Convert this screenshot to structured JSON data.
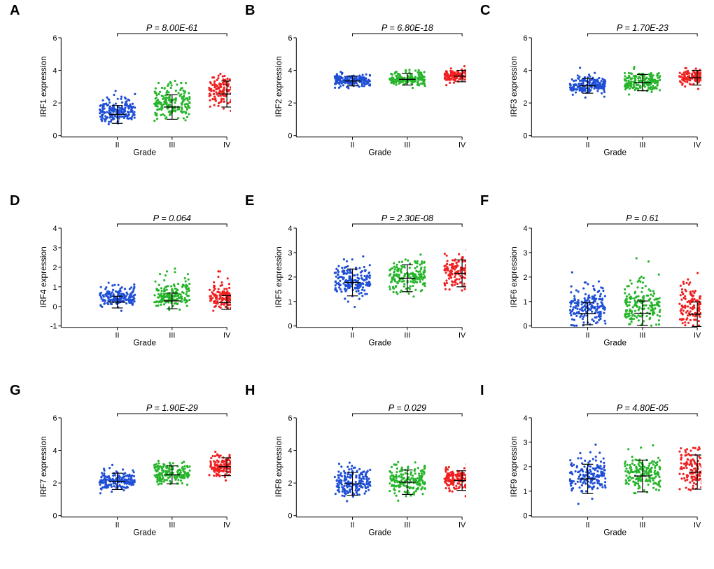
{
  "colors": {
    "bg": "#ffffff",
    "axis": "#000000",
    "groups": {
      "II": "#1f4fd6",
      "III": "#27b52b",
      "IV": "#f02020"
    },
    "meanbar": "#000000"
  },
  "layout": {
    "cols": 3,
    "rows": 3,
    "dot_radius": 1.6,
    "points_per_group": 180,
    "jitter_width": 0.65,
    "group_positions": [
      1,
      2,
      3
    ],
    "axis_stroke_width": 1,
    "pval_fontsize": 13,
    "tick_fontsize": 11,
    "axis_title_fontsize": 12,
    "panel_letter_fontsize": 20
  },
  "xaxis": {
    "title": "Grade",
    "categories": [
      "II",
      "III",
      "IV"
    ]
  },
  "panels": [
    {
      "letter": "A",
      "y_label": "IRF1 expression",
      "p_text": "P = 8.00E-61",
      "ylim": [
        0,
        6
      ],
      "yticks": [
        0,
        2,
        4,
        6
      ],
      "groups": [
        {
          "grade": "II",
          "mean": 1.3,
          "sd": 0.55,
          "skew": 1.2
        },
        {
          "grade": "III",
          "mean": 1.75,
          "sd": 0.75,
          "skew": 1.1
        },
        {
          "grade": "IV",
          "mean": 2.55,
          "sd": 0.8,
          "skew": 0.7
        }
      ]
    },
    {
      "letter": "B",
      "y_label": "IRF2 expression",
      "p_text": "P = 6.80E-18",
      "ylim": [
        0,
        6
      ],
      "yticks": [
        0,
        2,
        4,
        6
      ],
      "groups": [
        {
          "grade": "II",
          "mean": 3.35,
          "sd": 0.3,
          "skew": 0.2
        },
        {
          "grade": "III",
          "mean": 3.45,
          "sd": 0.35,
          "skew": 0.2
        },
        {
          "grade": "IV",
          "mean": 3.65,
          "sd": 0.35,
          "skew": 0.2
        }
      ]
    },
    {
      "letter": "C",
      "y_label": "IRF3 expression",
      "p_text": "P = 1.70E-23",
      "ylim": [
        0,
        6
      ],
      "yticks": [
        0,
        2,
        4,
        6
      ],
      "groups": [
        {
          "grade": "II",
          "mean": 3.05,
          "sd": 0.45,
          "skew": 0.3
        },
        {
          "grade": "III",
          "mean": 3.25,
          "sd": 0.5,
          "skew": 0.3
        },
        {
          "grade": "IV",
          "mean": 3.55,
          "sd": 0.45,
          "skew": 0.3
        }
      ]
    },
    {
      "letter": "D",
      "y_label": "IRF4 expression",
      "p_text": "P = 0.064",
      "ylim": [
        -1,
        4
      ],
      "yticks": [
        -1,
        0,
        1,
        2,
        3,
        4
      ],
      "groups": [
        {
          "grade": "II",
          "mean": 0.22,
          "sd": 0.3,
          "skew": 2.5
        },
        {
          "grade": "III",
          "mean": 0.28,
          "sd": 0.4,
          "skew": 2.5
        },
        {
          "grade": "IV",
          "mean": 0.2,
          "sd": 0.35,
          "skew": 2.5
        }
      ]
    },
    {
      "letter": "E",
      "y_label": "IRF5 expression",
      "p_text": "P = 2.30E-08",
      "ylim": [
        0,
        4
      ],
      "yticks": [
        0,
        1,
        2,
        3,
        4
      ],
      "groups": [
        {
          "grade": "II",
          "mean": 1.78,
          "sd": 0.55,
          "skew": 0.4
        },
        {
          "grade": "III",
          "mean": 1.95,
          "sd": 0.55,
          "skew": 0.4
        },
        {
          "grade": "IV",
          "mean": 2.15,
          "sd": 0.55,
          "skew": 0.4
        }
      ]
    },
    {
      "letter": "F",
      "y_label": "IRF6 expression",
      "p_text": "P = 0.61",
      "ylim": [
        0,
        4
      ],
      "yticks": [
        0,
        1,
        2,
        3,
        4
      ],
      "groups": [
        {
          "grade": "II",
          "mean": 0.5,
          "sd": 0.45,
          "skew": 2.0
        },
        {
          "grade": "III",
          "mean": 0.52,
          "sd": 0.5,
          "skew": 2.0
        },
        {
          "grade": "IV",
          "mean": 0.48,
          "sd": 0.5,
          "skew": 2.0
        }
      ]
    },
    {
      "letter": "G",
      "y_label": "IRF7 expression",
      "p_text": "P = 1.90E-29",
      "ylim": [
        0,
        6
      ],
      "yticks": [
        0,
        2,
        4,
        6
      ],
      "groups": [
        {
          "grade": "II",
          "mean": 2.1,
          "sd": 0.5,
          "skew": 0.4
        },
        {
          "grade": "III",
          "mean": 2.5,
          "sd": 0.55,
          "skew": 0.4
        },
        {
          "grade": "IV",
          "mean": 3.0,
          "sd": 0.55,
          "skew": 0.3
        }
      ]
    },
    {
      "letter": "H",
      "y_label": "IRF8 expression",
      "p_text": "P = 0.029",
      "ylim": [
        0,
        6
      ],
      "yticks": [
        0,
        2,
        4,
        6
      ],
      "groups": [
        {
          "grade": "II",
          "mean": 1.95,
          "sd": 0.7,
          "skew": 0.5
        },
        {
          "grade": "III",
          "mean": 2.05,
          "sd": 0.75,
          "skew": 0.5
        },
        {
          "grade": "IV",
          "mean": 2.15,
          "sd": 0.6,
          "skew": 0.4
        }
      ]
    },
    {
      "letter": "I",
      "y_label": "IRF9 expression",
      "p_text": "P = 4.80E-05",
      "ylim": [
        0,
        4
      ],
      "yticks": [
        0,
        1,
        2,
        3,
        4
      ],
      "groups": [
        {
          "grade": "II",
          "mean": 1.5,
          "sd": 0.6,
          "skew": 0.6
        },
        {
          "grade": "III",
          "mean": 1.62,
          "sd": 0.65,
          "skew": 0.6
        },
        {
          "grade": "IV",
          "mean": 1.78,
          "sd": 0.7,
          "skew": 0.6
        }
      ]
    }
  ]
}
